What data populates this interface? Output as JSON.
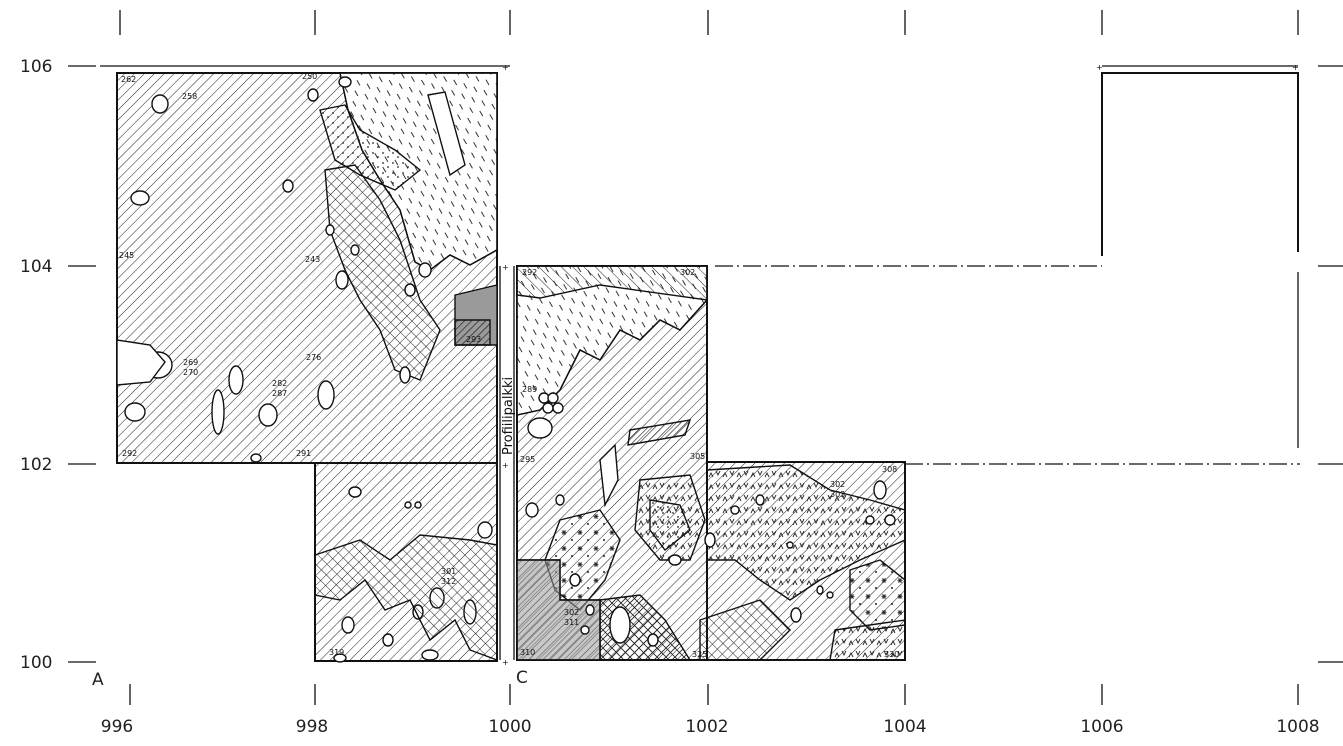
{
  "x_labels": [
    "996",
    "998",
    "1000",
    "1002",
    "1004",
    "1006",
    "1008"
  ],
  "y_labels": [
    "106",
    "104",
    "102",
    "100"
  ],
  "corner_labels": {
    "left": "A",
    "middle": "C"
  },
  "baulk_label": "Profiilipalkki",
  "feature_labels": [
    "262",
    "258",
    "250",
    "245",
    "243",
    "269",
    "270",
    "276",
    "282",
    "287",
    "292",
    "291",
    "293",
    "292",
    "302",
    "289",
    "295",
    "305",
    "308",
    "302",
    "303",
    "301",
    "312",
    "302",
    "311",
    "310",
    "319",
    "325",
    "330"
  ],
  "colors": {
    "ink": "#111111",
    "background": "#ffffff",
    "shade": "#9a9a9a"
  }
}
